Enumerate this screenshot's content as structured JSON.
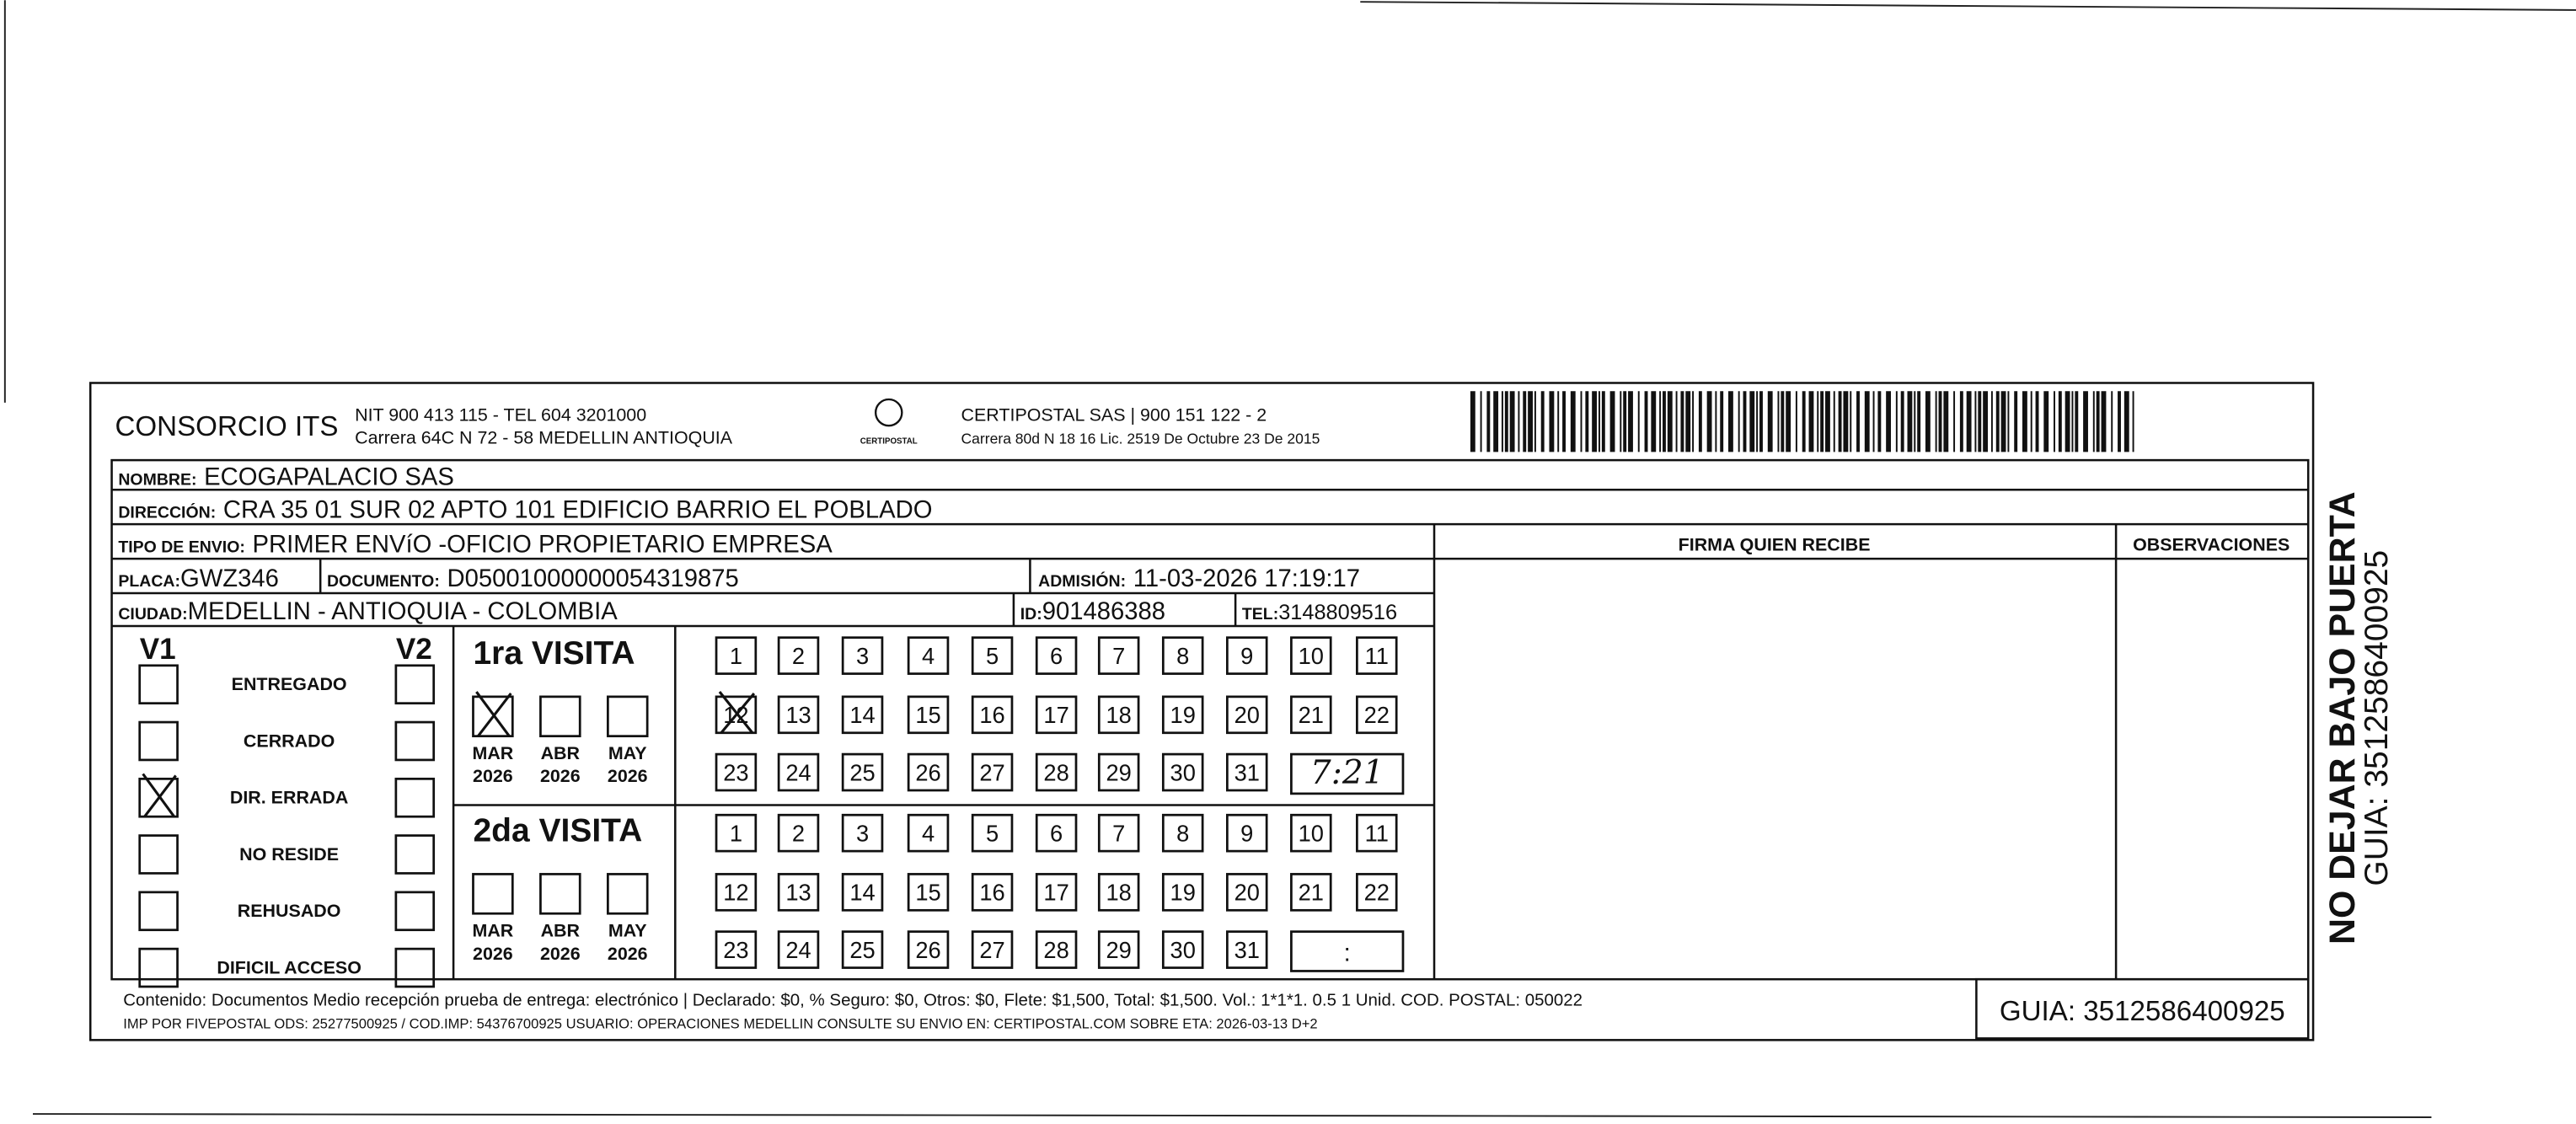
{
  "header": {
    "company": "CONSORCIO ITS",
    "company_line1": "NIT 900 413 115 - TEL 604 3201000",
    "company_line2": "Carrera 64C N 72 - 58 MEDELLIN ANTIOQUIA",
    "logo_text": "CERTIPOSTAL",
    "partner_line1": "CERTIPOSTAL SAS | 900 151 122 - 2",
    "partner_line2": "Carrera 80d N 18 16  Lic. 2519 De Octubre 23 De 2015"
  },
  "fields": {
    "nombre": {
      "label": "NOMBRE:",
      "value": "ECOGAPALACIO SAS"
    },
    "direccion": {
      "label": "DIRECCIÓN:",
      "value": "CRA 35  01 SUR 02 APTO 101 EDIFICIO BARRIO EL POBLADO"
    },
    "tipo_envio": {
      "label": "TIPO DE ENVIO:",
      "value": "PRIMER ENVíO -OFICIO PROPIETARIO EMPRESA"
    },
    "placa": {
      "label": "PLACA:",
      "value": "GWZ346"
    },
    "documento": {
      "label": "DOCUMENTO:",
      "value": "D05001000000054319875"
    },
    "admision": {
      "label": "ADMISIÓN:",
      "value": "11-03-2026 17:19:17"
    },
    "ciudad": {
      "label": "CIUDAD:",
      "value": "MEDELLIN - ANTIOQUIA - COLOMBIA"
    },
    "id": {
      "label": "ID:",
      "value": "901486388"
    },
    "tel": {
      "label": "TEL:",
      "value": "3148809516"
    }
  },
  "columns": {
    "firma": "FIRMA QUIEN RECIBE",
    "observaciones": "OBSERVACIONES"
  },
  "status": {
    "v1": "V1",
    "v2": "V2",
    "options": [
      "ENTREGADO",
      "CERRADO",
      "DIR. ERRADA",
      "NO RESIDE",
      "REHUSADO",
      "DIFICIL ACCESO"
    ]
  },
  "visits": [
    {
      "title": "1ra VISITA",
      "months": [
        {
          "month": "MAR",
          "year": "2026"
        },
        {
          "month": "ABR",
          "year": "2026"
        },
        {
          "month": "MAY",
          "year": "2026"
        }
      ],
      "days": [
        1,
        2,
        3,
        4,
        5,
        6,
        7,
        8,
        9,
        10,
        11,
        12,
        13,
        14,
        15,
        16,
        17,
        18,
        19,
        20,
        21,
        22,
        23,
        24,
        25,
        26,
        27,
        28,
        29,
        30,
        31
      ],
      "time": "7:21"
    },
    {
      "title": "2da VISITA",
      "months": [
        {
          "month": "MAR",
          "year": "2026"
        },
        {
          "month": "ABR",
          "year": "2026"
        },
        {
          "month": "MAY",
          "year": "2026"
        }
      ],
      "days": [
        1,
        2,
        3,
        4,
        5,
        6,
        7,
        8,
        9,
        10,
        11,
        12,
        13,
        14,
        15,
        16,
        17,
        18,
        19,
        20,
        21,
        22,
        23,
        24,
        25,
        26,
        27,
        28,
        29,
        30,
        31
      ],
      "time": ":"
    }
  ],
  "footer": {
    "line1": "Contenido: Documentos Medio recepción prueba de entrega: electrónico | Declarado: $0, % Seguro: $0, Otros: $0, Flete: $1,500, Total: $1,500. Vol.: 1*1*1. 0.5  1 Unid. COD. POSTAL: 050022",
    "line2": "IMP POR FIVEPOSTAL ODS: 25277500925 / COD.IMP: 54376700925 USUARIO: OPERACIONES MEDELLIN CONSULTE SU ENVIO EN: CERTIPOSTAL.COM SOBRE ETA: 2026-03-13 D+2",
    "guia": "GUIA: 3512586400925"
  },
  "side": {
    "notice": "NO DEJAR BAJO PUERTA",
    "guia": "GUIA: 3512586400925"
  }
}
